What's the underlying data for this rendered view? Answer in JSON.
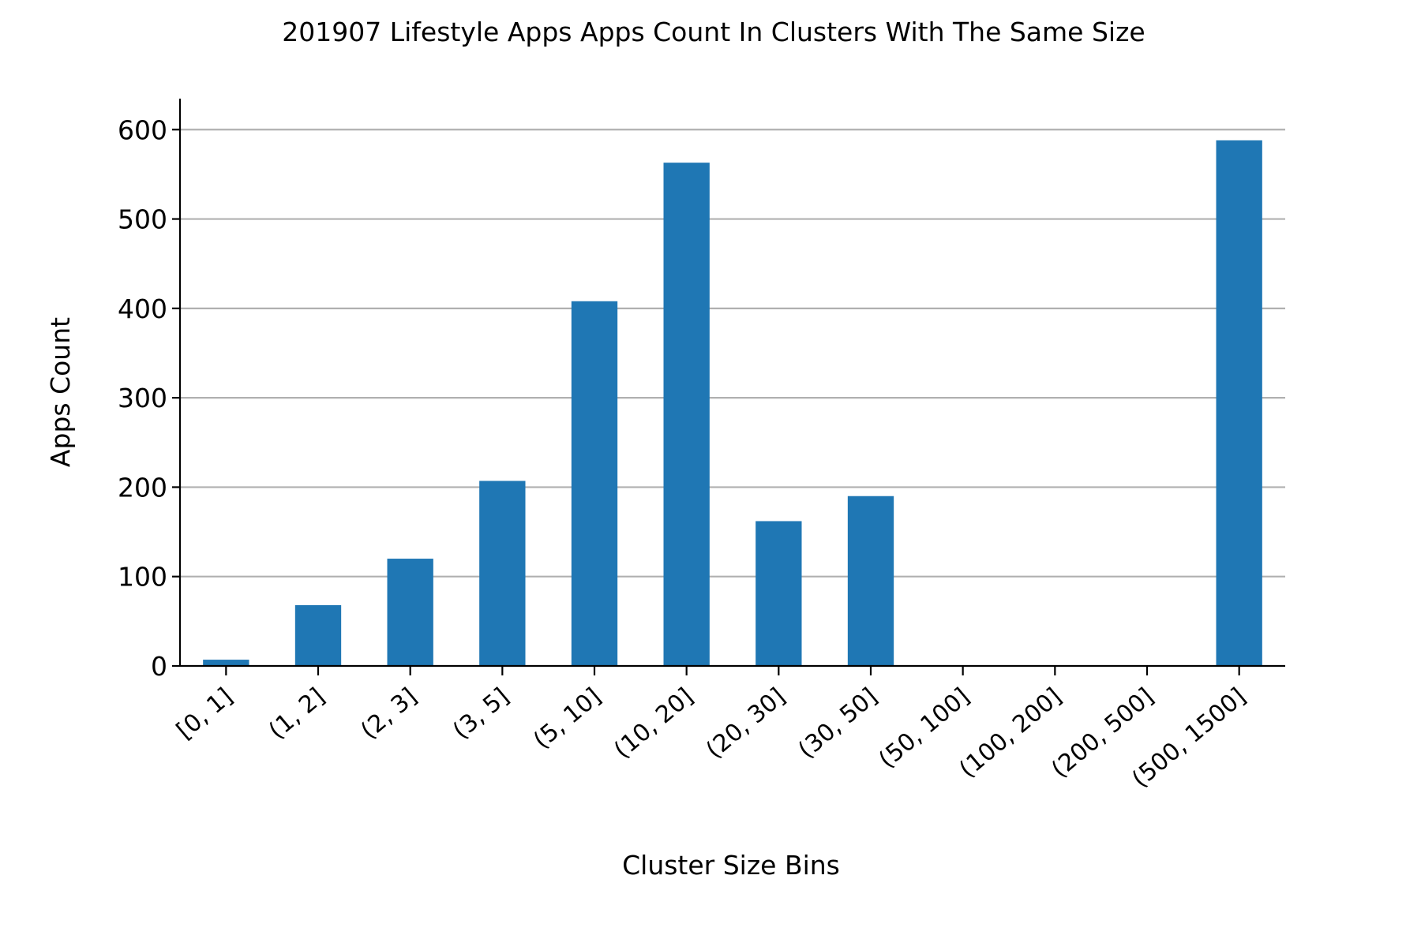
{
  "chart_data": {
    "type": "bar",
    "title": "201907 Lifestyle Apps Apps Count In Clusters With The Same Size",
    "xlabel": "Cluster Size Bins",
    "ylabel": "Apps Count",
    "categories": [
      "[0, 1]",
      "(1, 2]",
      "(2, 3]",
      "(3, 5]",
      "(5, 10]",
      "(10, 20]",
      "(20, 30]",
      "(30, 50]",
      "(50, 100]",
      "(100, 200]",
      "(200, 500]",
      "(500, 1500]"
    ],
    "values": [
      7,
      68,
      120,
      207,
      408,
      563,
      162,
      190,
      0,
      0,
      0,
      588
    ],
    "ylim": [
      0,
      617
    ],
    "yticks": [
      0,
      100,
      200,
      300,
      400,
      500,
      600
    ],
    "grid": "horizontal",
    "bar_color": "#1f77b4"
  }
}
